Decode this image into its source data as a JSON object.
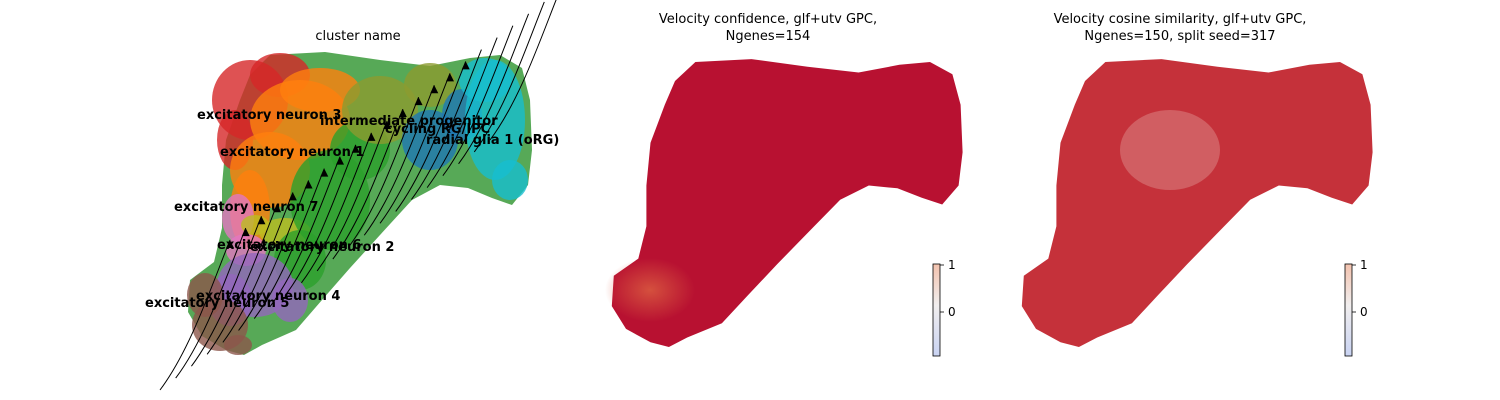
{
  "colors": {
    "excitatory neuron 3": "#d62728",
    "excitatory neuron 1": "#ff7f0e",
    "excitatory neuron 7": "#e377c2",
    "excitatory neuron 6": "#bcbd22",
    "excitatory neuron 2": "#2ca02c",
    "excitatory neuron 4": "#9467bd",
    "excitatory neuron 5": "#8c564b",
    "intermediate progenitor": "#8c9b2f",
    "cycling RG/IPC": "#1f77b4",
    "radial glia 1 (oRG)": "#17becf",
    "high": "#b40426",
    "low": "#3b4cc0",
    "arrow": "#000000"
  },
  "chart_data": [
    {
      "type": "scatter",
      "title": "cluster name",
      "stream_arrows": true,
      "cluster_labels": [
        {
          "name": "excitatory neuron 3"
        },
        {
          "name": "intermediate progenitor"
        },
        {
          "name": "cycling RG/IPC"
        },
        {
          "name": "radial glia 1 (oRG)"
        },
        {
          "name": "excitatory neuron 1"
        },
        {
          "name": "excitatory neuron 7"
        },
        {
          "name": "excitatory neuron 6"
        },
        {
          "name": "excitatory neuron 2"
        },
        {
          "name": "excitatory neuron 4"
        },
        {
          "name": "excitatory neuron 5"
        }
      ]
    },
    {
      "type": "scatter",
      "title_lines": [
        "Velocity confidence, glf+utv GPC,",
        "Ngenes=154"
      ],
      "colorbar": {
        "ticks": [
          "1",
          "0"
        ],
        "cmap": "coolwarm"
      }
    },
    {
      "type": "scatter",
      "title_lines": [
        "Velocity cosine similarity, glf+utv GPC,",
        "Ngenes=150, split seed=317"
      ],
      "colorbar": {
        "ticks": [
          "1",
          "0"
        ],
        "cmap": "coolwarm"
      }
    }
  ]
}
